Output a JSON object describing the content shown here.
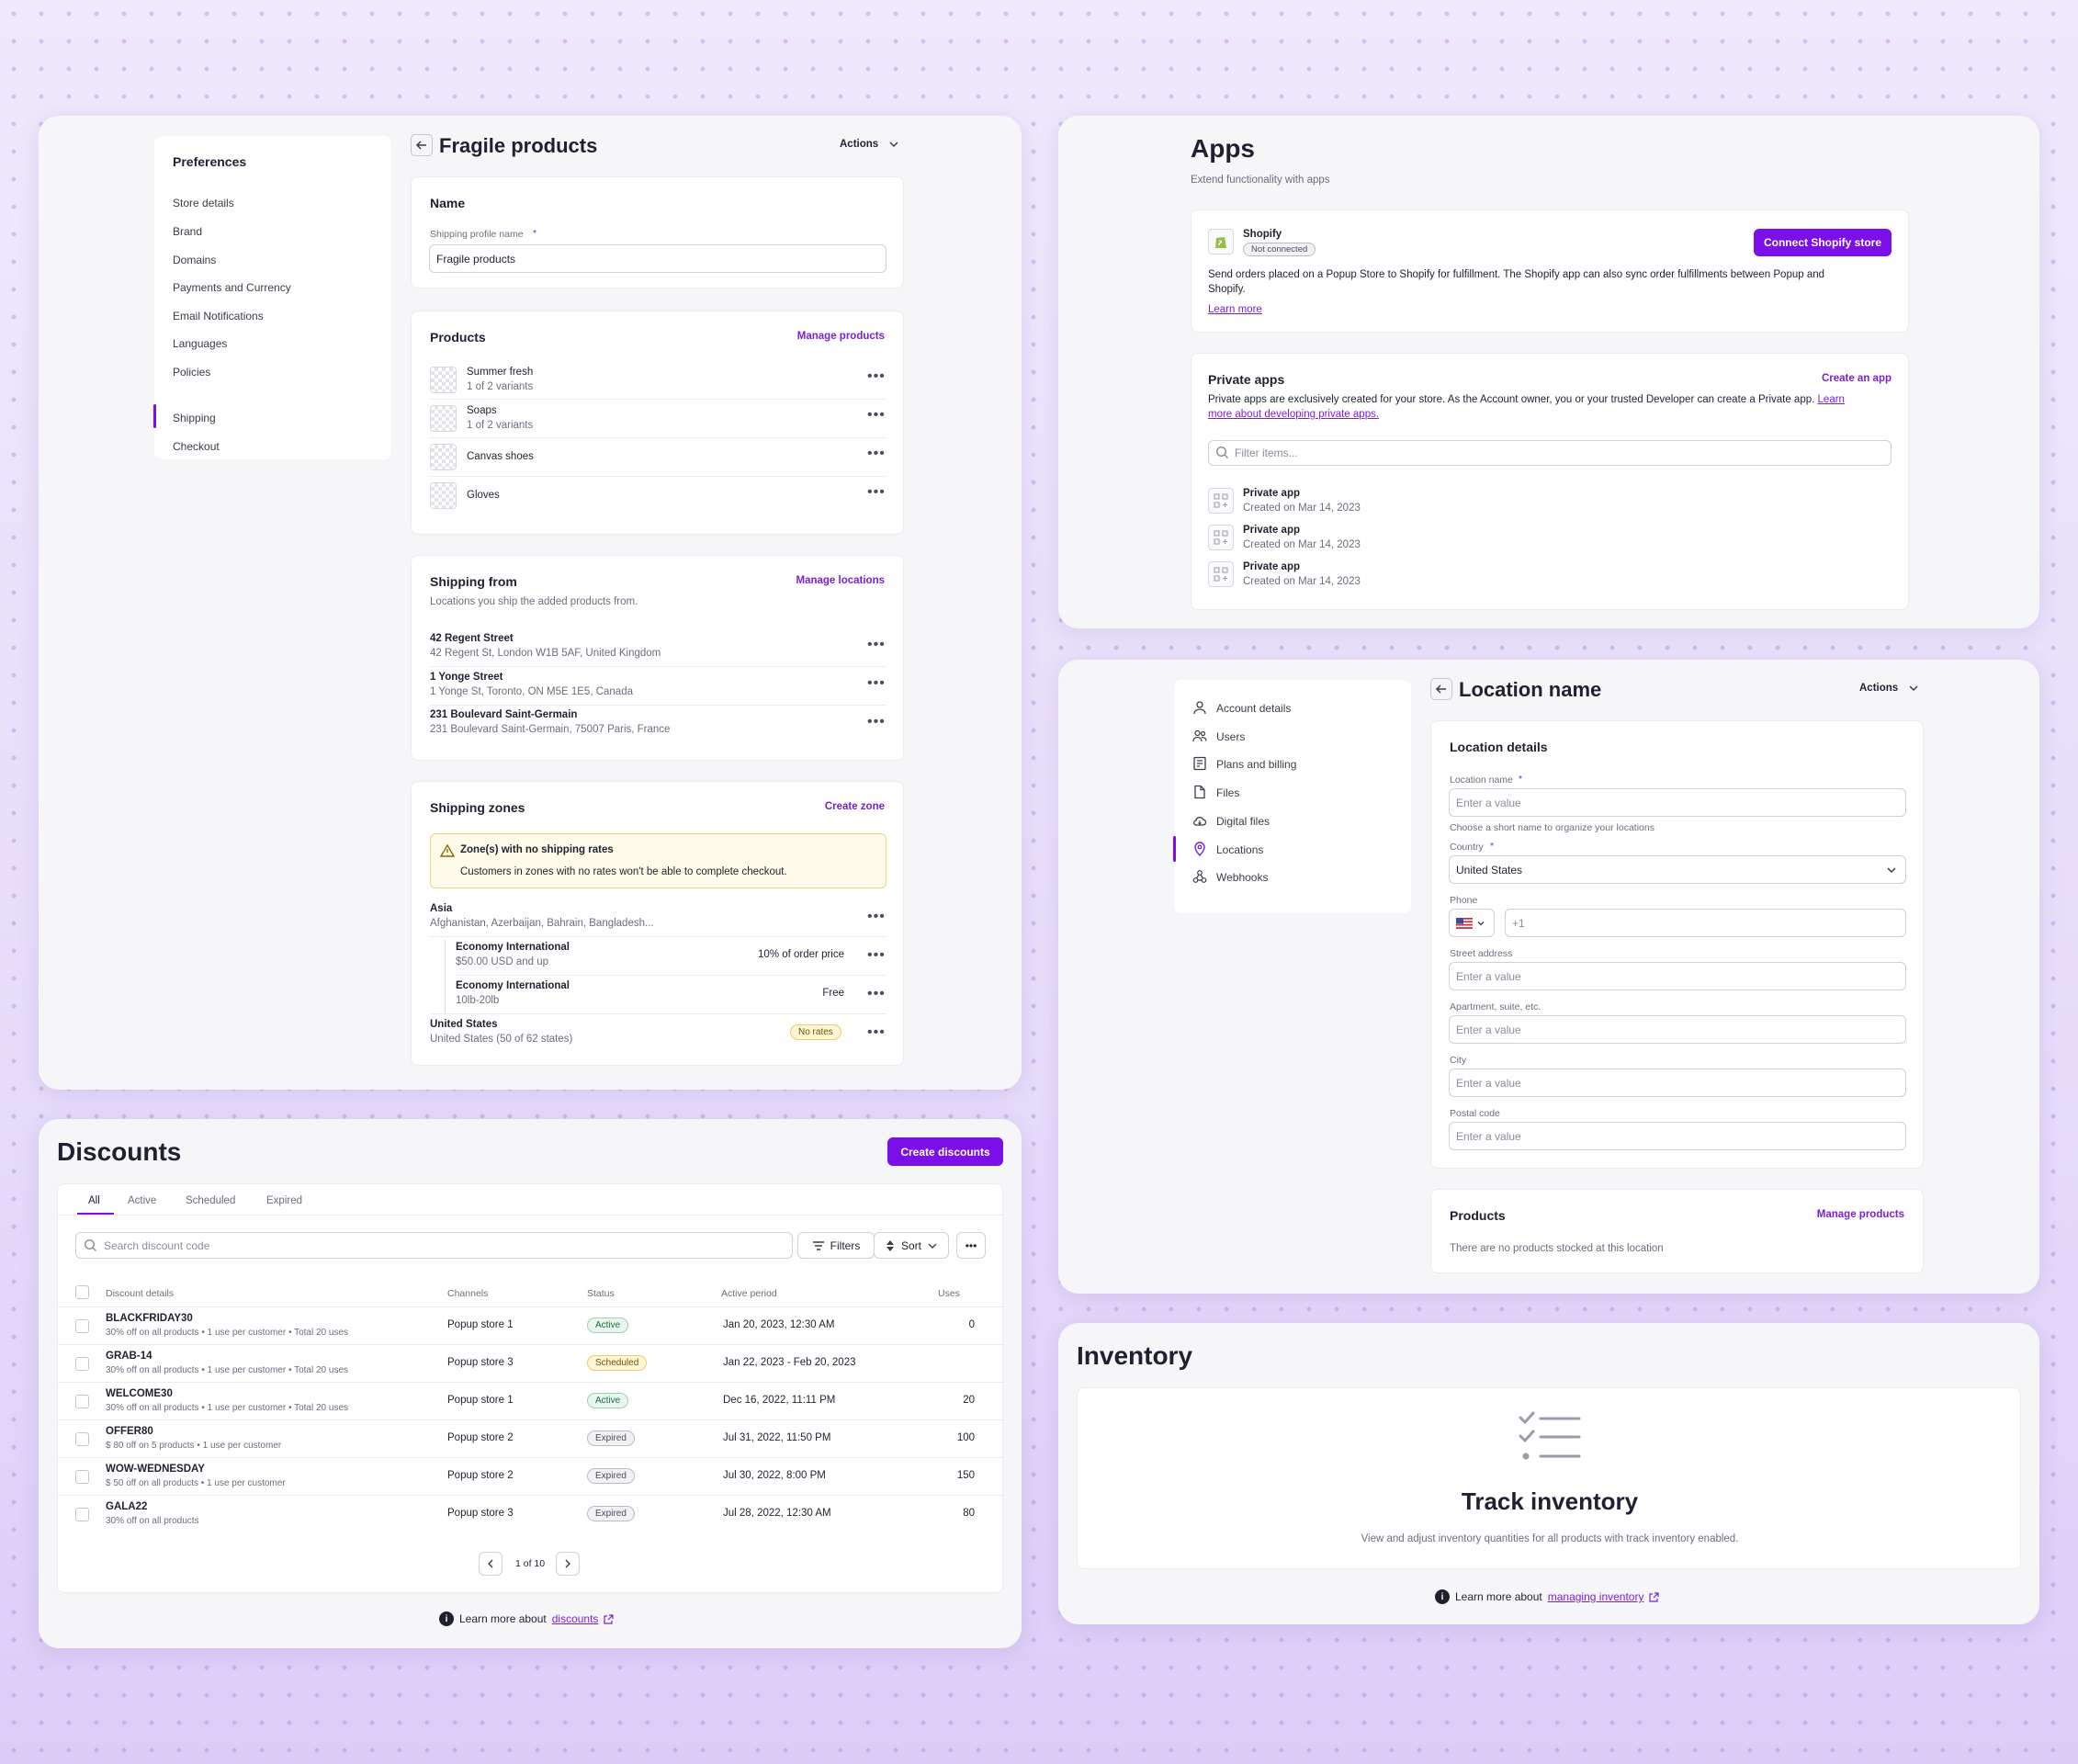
{
  "shipping": {
    "prefs_title": "Preferences",
    "nav": [
      "Store details",
      "Brand",
      "Domains",
      "Payments and Currency",
      "Email Notifications",
      "Languages",
      "Policies",
      "Shipping",
      "Checkout"
    ],
    "title": "Fragile products",
    "actions": "Actions",
    "name_section": "Name",
    "profile_label": "Shipping profile name",
    "profile_value": "Fragile products",
    "products_title": "Products",
    "manage_products": "Manage products",
    "products": [
      {
        "name": "Summer fresh",
        "sub": "1 of 2 variants"
      },
      {
        "name": "Soaps",
        "sub": "1 of 2 variants"
      },
      {
        "name": "Canvas shoes",
        "sub": ""
      },
      {
        "name": "Gloves",
        "sub": ""
      }
    ],
    "from_title": "Shipping from",
    "manage_locations": "Manage locations",
    "from_desc": "Locations you ship the added products from.",
    "locations": [
      {
        "name": "42 Regent Street",
        "addr": "42 Regent St, London W1B 5AF, United Kingdom"
      },
      {
        "name": "1 Yonge Street",
        "addr": "1 Yonge St, Toronto, ON M5E 1E5, Canada"
      },
      {
        "name": "231 Boulevard Saint-Germain",
        "addr": "231 Boulevard Saint-Germain, 75007 Paris, France"
      }
    ],
    "zones_title": "Shipping zones",
    "create_zone": "Create zone",
    "warn_title": "Zone(s) with no shipping rates",
    "warn_body": "Customers in zones with no rates won't be able to complete checkout.",
    "zone_asia": "Asia",
    "zone_asia_sub": "Afghanistan, Azerbaijan, Bahrain, Bangladesh...",
    "rates": [
      {
        "name": "Economy International",
        "sub": "$50.00 USD and up",
        "price": "10% of order price"
      },
      {
        "name": "Economy International",
        "sub": "10lb-20lb",
        "price": "Free"
      }
    ],
    "zone_us": "United States",
    "zone_us_sub": "United States (50 of 62 states)",
    "no_rates": "No rates"
  },
  "discounts": {
    "title": "Discounts",
    "create": "Create discounts",
    "tabs": [
      "All",
      "Active",
      "Scheduled",
      "Expired"
    ],
    "search_placeholder": "Search discount code",
    "filters": "Filters",
    "sort": "Sort",
    "columns": [
      "Discount details",
      "Channels",
      "Status",
      "Active period",
      "Uses"
    ],
    "rows": [
      {
        "code": "BLACKFRIDAY30",
        "desc": "30% off on all products • 1 use per customer • Total 20 uses",
        "channel": "Popup store 1",
        "status": "Active",
        "period": "Jan 20, 2023, 12:30 AM",
        "uses": "0"
      },
      {
        "code": "GRAB-14",
        "desc": "30% off on all products • 1 use per customer • Total 20 uses",
        "channel": "Popup store 3",
        "status": "Scheduled",
        "period": "Jan 22, 2023 - Feb 20, 2023",
        "uses": ""
      },
      {
        "code": "WELCOME30",
        "desc": "30% off on all products • 1 use per customer • Total 20 uses",
        "channel": "Popup store 1",
        "status": "Active",
        "period": "Dec 16, 2022, 11:11 PM",
        "uses": "20"
      },
      {
        "code": "OFFER80",
        "desc": "$ 80 off on 5 products • 1 use per customer",
        "channel": "Popup store 2",
        "status": "Expired",
        "period": "Jul 31, 2022, 11:50 PM",
        "uses": "100"
      },
      {
        "code": "WOW-WEDNESDAY",
        "desc": "$ 50 off on all products • 1 use per customer",
        "channel": "Popup store 2",
        "status": "Expired",
        "period": "Jul 30, 2022, 8:00 PM",
        "uses": "150"
      },
      {
        "code": "GALA22",
        "desc": "30% off on all products",
        "channel": "Popup store 3",
        "status": "Expired",
        "period": "Jul 28, 2022, 12:30 AM",
        "uses": "80"
      }
    ],
    "pagination": "1 of 10",
    "learn_prefix": "Learn more about",
    "learn_link": "discounts"
  },
  "apps": {
    "title": "Apps",
    "subtitle": "Extend functionality with apps",
    "shopify_name": "Shopify",
    "shopify_status": "Not connected",
    "connect": "Connect Shopify store",
    "shopify_desc1": "Send orders placed on a Popup Store to Shopify for fulfillment. The Shopify app can also sync order fulfillments between Popup and",
    "shopify_desc2": "Shopify.",
    "learn_more": "Learn more",
    "private_title": "Private apps",
    "create_app": "Create an app",
    "private_desc1": "Private apps are exclusively created for your store. As the Account owner, you or your trusted Developer can create a Private app.",
    "private_link1": "Learn",
    "private_link2": "more about developing private apps.",
    "filter_placeholder": "Filter items...",
    "private_list": [
      {
        "name": "Private app",
        "date": "Created on Mar 14, 2023"
      },
      {
        "name": "Private app",
        "date": "Created on Mar 14, 2023"
      },
      {
        "name": "Private app",
        "date": "Created on Mar 14, 2023"
      }
    ]
  },
  "location": {
    "nav": [
      {
        "label": "Account details",
        "icon": "user-icon"
      },
      {
        "label": "Users",
        "icon": "users-icon"
      },
      {
        "label": "Plans and billing",
        "icon": "billing-icon"
      },
      {
        "label": "Files",
        "icon": "file-icon"
      },
      {
        "label": "Digital files",
        "icon": "cloud-icon"
      },
      {
        "label": "Locations",
        "icon": "location-pin-icon"
      },
      {
        "label": "Webhooks",
        "icon": "webhook-icon"
      }
    ],
    "title": "Location name",
    "actions": "Actions",
    "details_title": "Location details",
    "name_label": "Location name",
    "placeholder": "Enter a value",
    "name_help": "Choose a short name to organize your locations",
    "country_label": "Country",
    "country_value": "United States",
    "phone_label": "Phone",
    "phone_prefix": "+1",
    "street_label": "Street address",
    "apt_label": "Apartment, suite, etc.",
    "city_label": "City",
    "postal_label": "Postal code",
    "products_title": "Products",
    "manage_products": "Manage products",
    "empty": "There are no products stocked at this location"
  },
  "inventory": {
    "title": "Inventory",
    "heading": "Track inventory",
    "desc": "View and adjust inventory quantities for all products with track inventory enabled.",
    "learn_prefix": "Learn more about",
    "learn_link": "managing inventory"
  }
}
